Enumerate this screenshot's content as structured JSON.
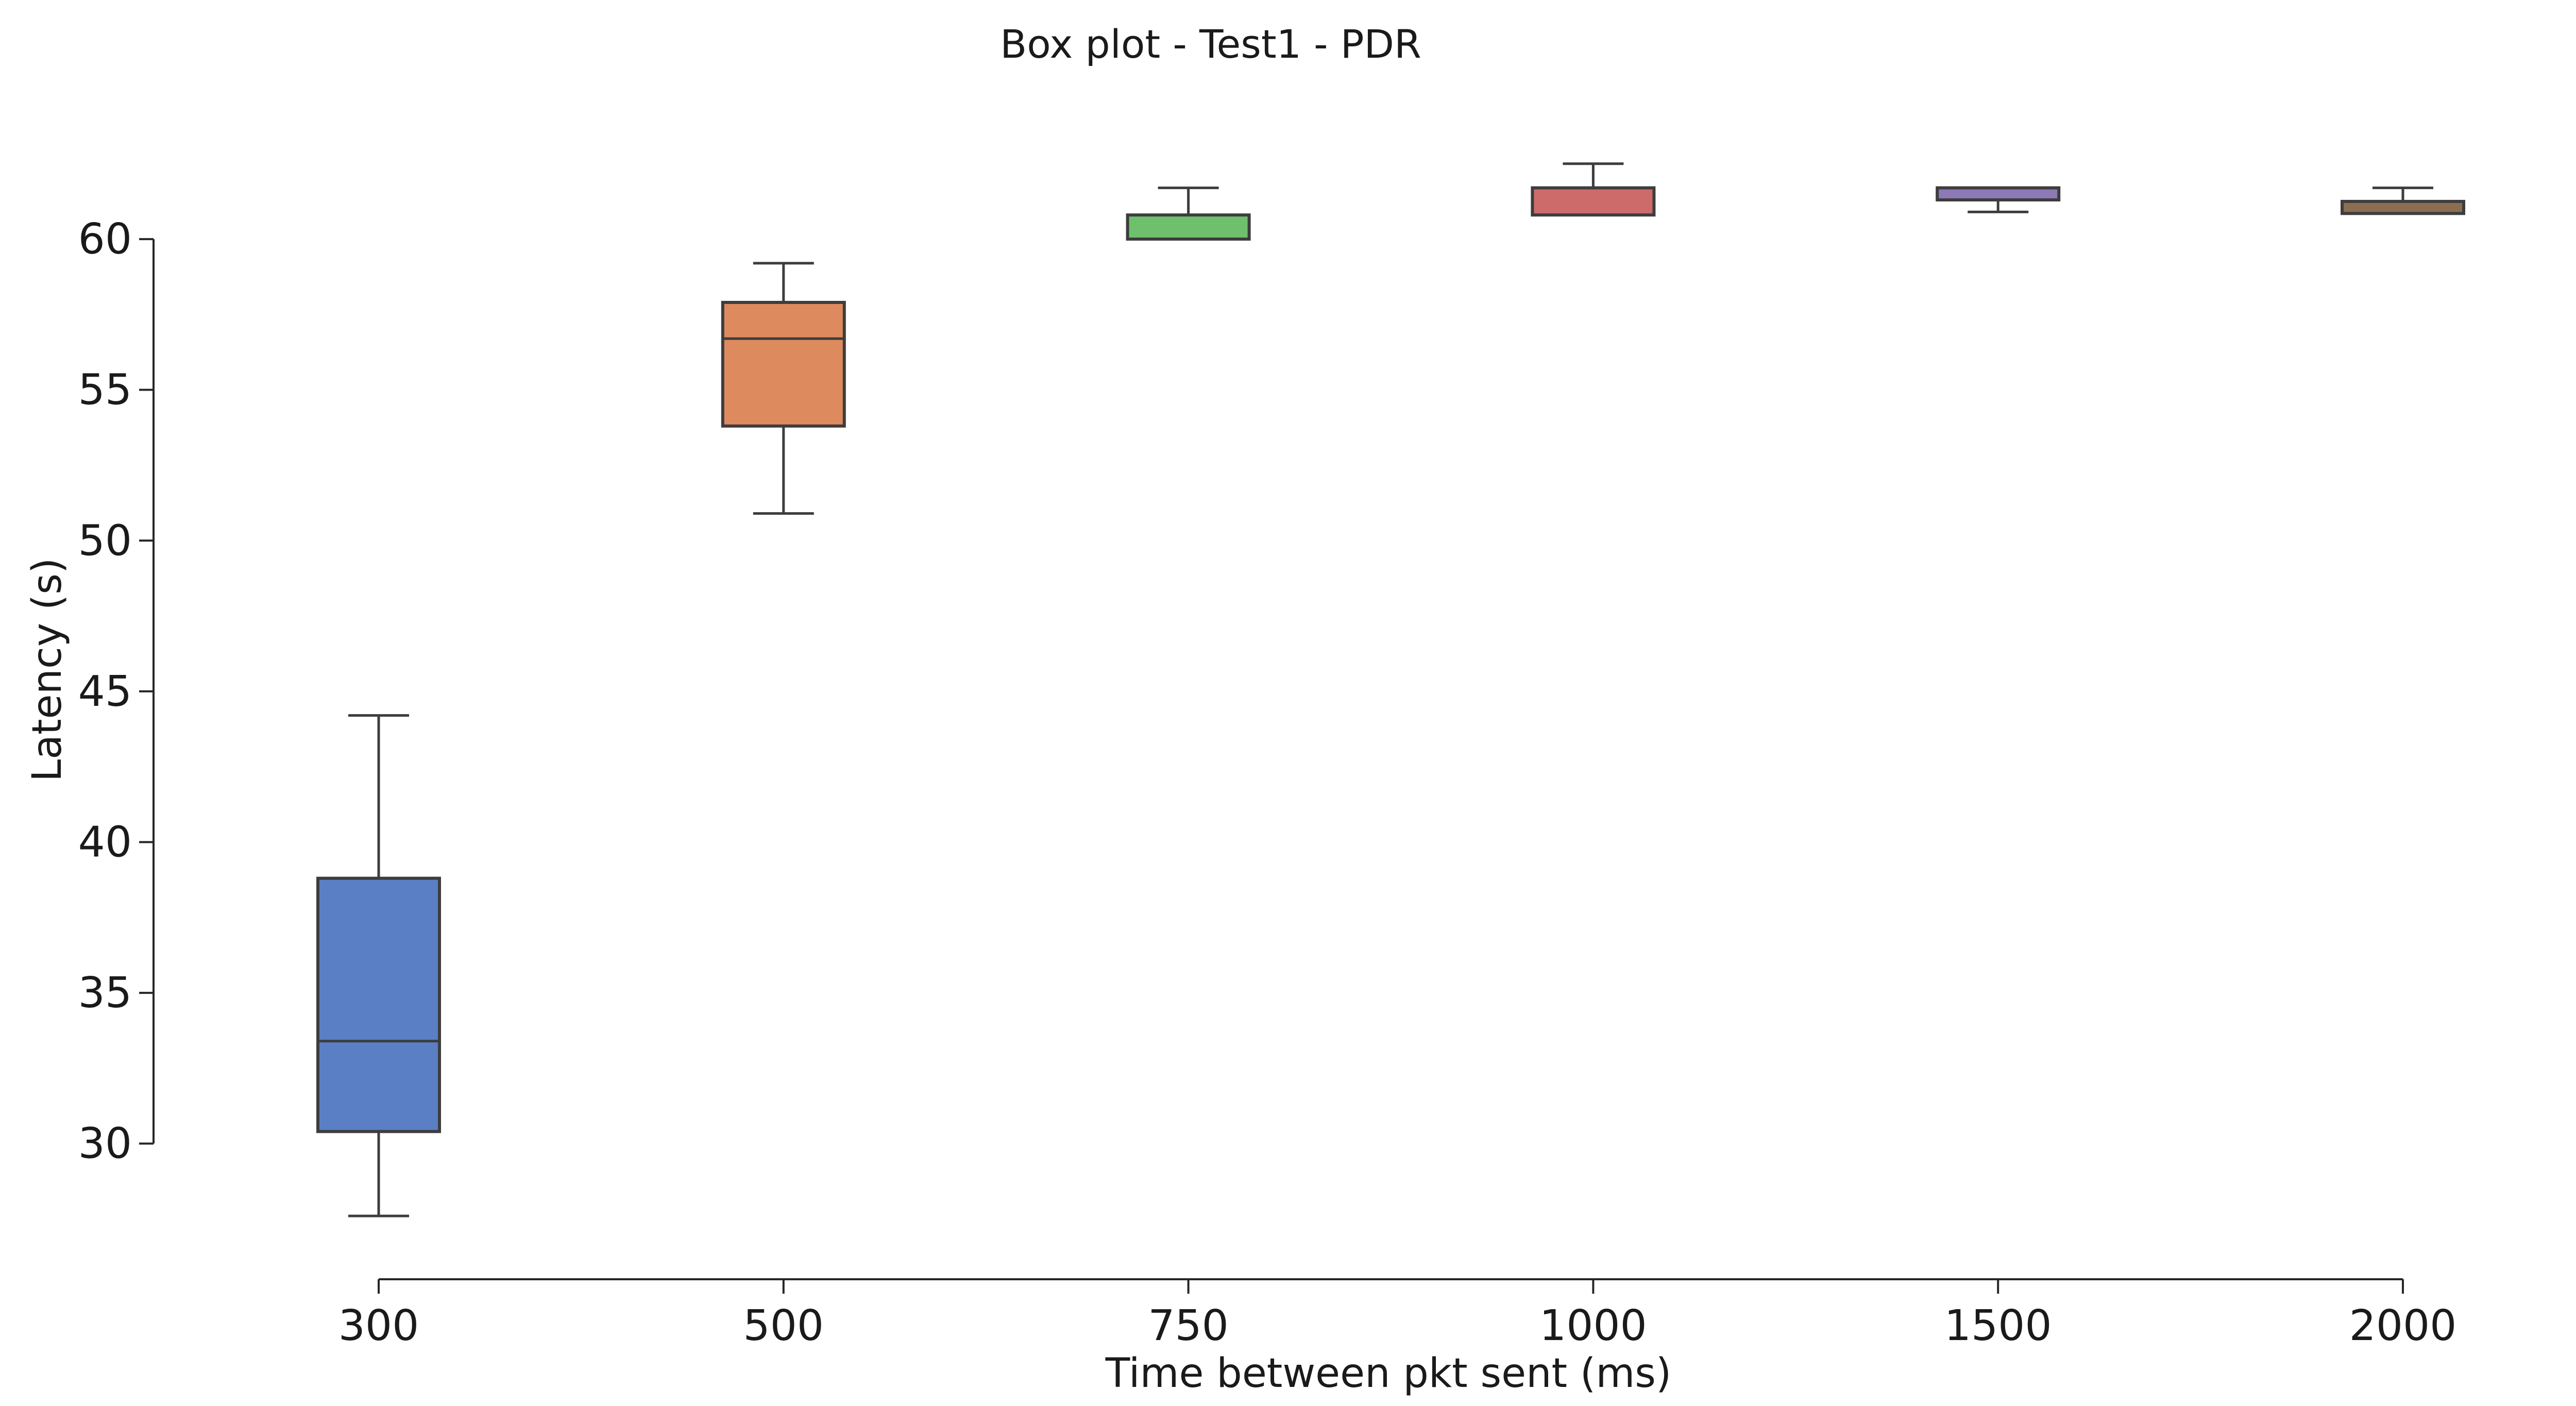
{
  "chart_data": {
    "type": "box",
    "title": "Box plot - Test1 - PDR",
    "xlabel": "Time between pkt sent (ms)",
    "ylabel": "Latency (s)",
    "categories": [
      "300",
      "500",
      "750",
      "1000",
      "1500",
      "2000"
    ],
    "yticks": [
      "30",
      "35",
      "40",
      "45",
      "50",
      "55",
      "60"
    ],
    "ylim": [
      25.5,
      64
    ],
    "grid": false,
    "boxes": [
      {
        "category": "300",
        "whisker_low": 27.6,
        "q1": 30.4,
        "median": 33.4,
        "q3": 38.8,
        "whisker_high": 44.2,
        "color": "#5a7fc4"
      },
      {
        "category": "500",
        "whisker_low": 50.9,
        "q1": 53.8,
        "median": 56.7,
        "q3": 57.9,
        "whisker_high": 59.2,
        "color": "#dd8a5e"
      },
      {
        "category": "750",
        "whisker_low": 60.0,
        "q1": 60.0,
        "median": 60.0,
        "q3": 60.8,
        "whisker_high": 61.7,
        "color": "#6fc06c"
      },
      {
        "category": "1000",
        "whisker_low": 60.8,
        "q1": 60.8,
        "median": 61.7,
        "q3": 61.7,
        "whisker_high": 62.5,
        "color": "#cd6b6b"
      },
      {
        "category": "1500",
        "whisker_low": 60.9,
        "q1": 61.3,
        "median": 61.3,
        "q3": 61.7,
        "whisker_high": 61.7,
        "color": "#8c79b6"
      },
      {
        "category": "2000",
        "whisker_low": 60.85,
        "q1": 60.85,
        "median": 60.85,
        "q3": 61.25,
        "whisker_high": 61.7,
        "color": "#8b6e52"
      }
    ]
  }
}
